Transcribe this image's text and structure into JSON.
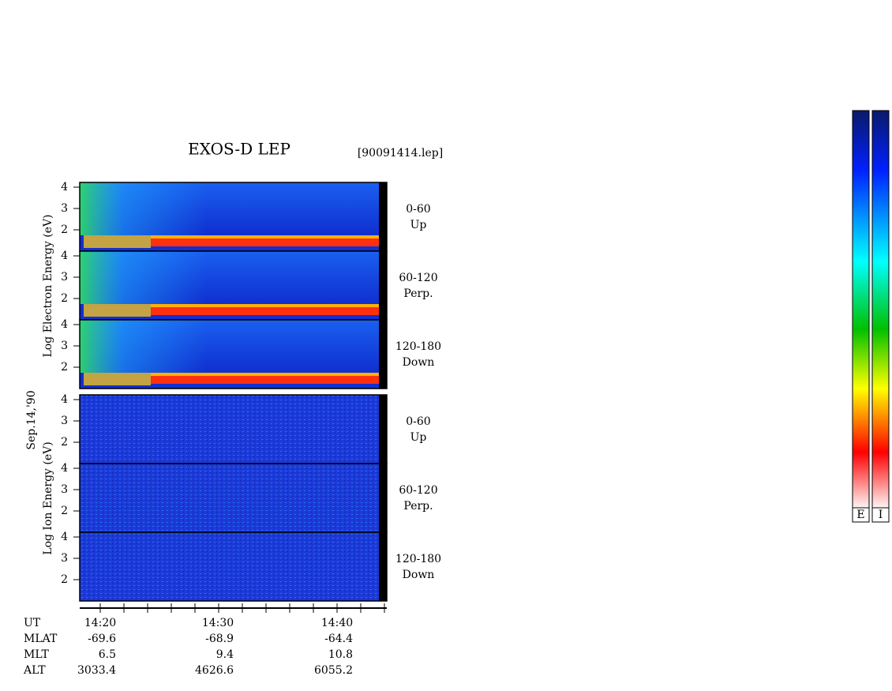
{
  "header": {
    "title": "EXOS-D LEP",
    "file": "[90091414.lep]"
  },
  "date": "Sep.14,'90",
  "yticks": [
    "4",
    "3",
    "2"
  ],
  "groups": [
    {
      "axis_label": "Log Electron Energy (eV)",
      "panels": [
        {
          "angle": "0-60",
          "direction": "Up"
        },
        {
          "angle": "60-120",
          "direction": "Perp."
        },
        {
          "angle": "120-180",
          "direction": "Down"
        }
      ]
    },
    {
      "axis_label": "Log Ion Energy (eV)",
      "panels": [
        {
          "angle": "0-60",
          "direction": "Up"
        },
        {
          "angle": "60-120",
          "direction": "Perp."
        },
        {
          "angle": "120-180",
          "direction": "Down"
        }
      ]
    }
  ],
  "footer": {
    "rows": [
      {
        "label": "UT",
        "values": [
          "14:20",
          "14:30",
          "14:40"
        ]
      },
      {
        "label": "MLAT",
        "values": [
          "-69.6",
          "-68.9",
          "-64.4"
        ]
      },
      {
        "label": "MLT",
        "values": [
          "6.5",
          "9.4",
          "10.8"
        ]
      },
      {
        "label": "ALT",
        "values": [
          "3033.4",
          "4626.6",
          "6055.2"
        ]
      }
    ]
  },
  "colorbars": [
    "E",
    "I"
  ]
}
